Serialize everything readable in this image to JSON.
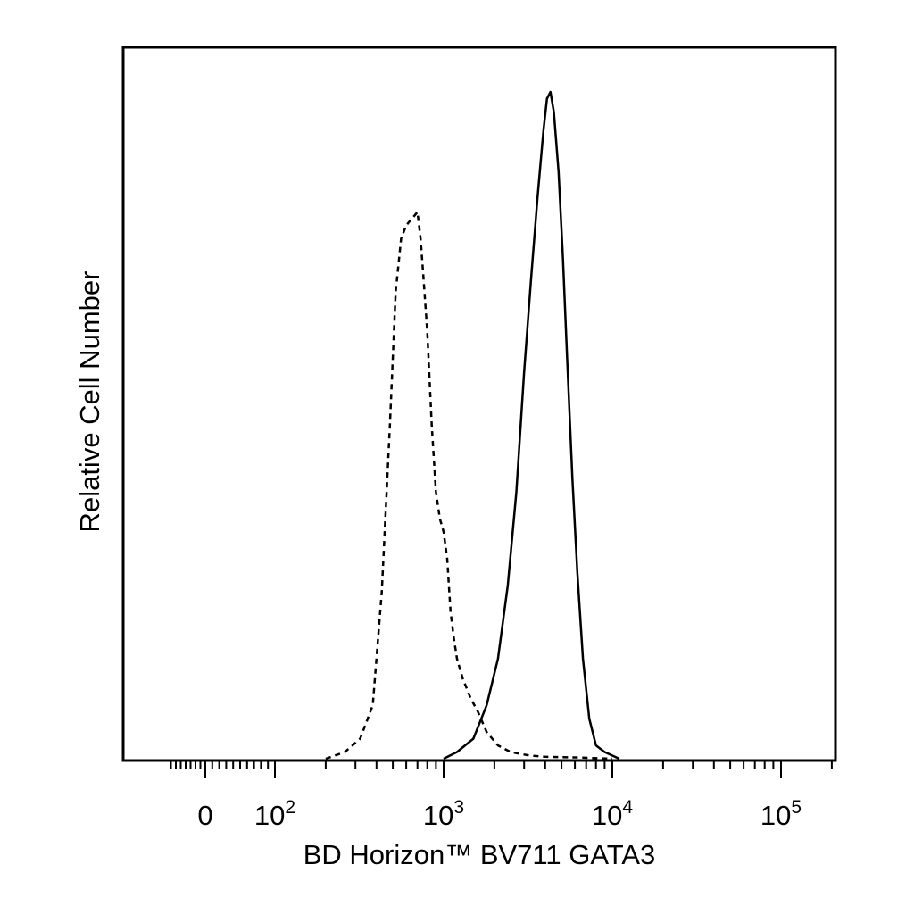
{
  "chart_data": {
    "type": "line",
    "title": "",
    "xlabel": "BD Horizon™ BV711 GATA3",
    "ylabel": "Relative Cell Number",
    "x_scale": "biexponential",
    "xlim": [
      -80,
      200000
    ],
    "ylim": [
      0,
      100
    ],
    "x_tick_labels": [
      {
        "value": 0,
        "base": "0",
        "exp": ""
      },
      {
        "value": 100,
        "base": "10",
        "exp": "2"
      },
      {
        "value": 1000,
        "base": "10",
        "exp": "3"
      },
      {
        "value": 10000,
        "base": "10",
        "exp": "4"
      },
      {
        "value": 100000,
        "base": "10",
        "exp": "5"
      }
    ],
    "grid": false,
    "legend": "none",
    "series": [
      {
        "style": "dashed",
        "x": [
          200,
          260,
          320,
          380,
          430,
          480,
          520,
          560,
          600,
          650,
          700,
          730,
          760,
          800,
          850,
          900,
          950,
          1000,
          1050,
          1100,
          1150,
          1200,
          1300,
          1450,
          1600,
          1800,
          2100,
          2500,
          3200,
          4000,
          6000,
          10000
        ],
        "y": [
          0,
          1,
          3,
          8,
          25,
          50,
          70,
          78,
          80,
          81,
          82,
          78,
          72,
          64,
          50,
          40,
          36,
          34,
          30,
          22,
          18,
          15,
          12,
          9,
          7,
          4,
          2,
          1,
          0.5,
          0.3,
          0.2,
          0
        ]
      },
      {
        "style": "solid",
        "x": [
          1000,
          1200,
          1500,
          1800,
          2100,
          2400,
          2700,
          3000,
          3300,
          3600,
          3900,
          4100,
          4300,
          4500,
          4800,
          5100,
          5400,
          5800,
          6200,
          6700,
          7300,
          8000,
          9000,
          11000
        ],
        "y": [
          0,
          1,
          3,
          8,
          15,
          26,
          40,
          58,
          72,
          84,
          94,
          99,
          100,
          97,
          88,
          75,
          60,
          42,
          28,
          15,
          6,
          2,
          1,
          0
        ]
      }
    ]
  }
}
